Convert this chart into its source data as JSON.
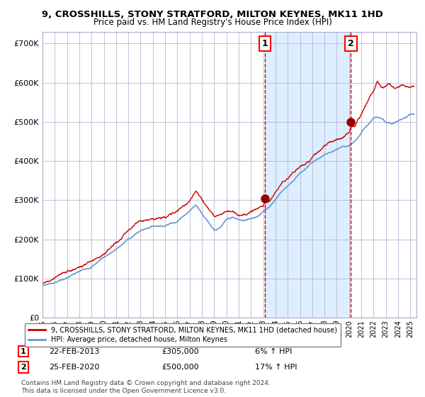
{
  "title1": "9, CROSSHILLS, STONY STRATFORD, MILTON KEYNES, MK11 1HD",
  "title2": "Price paid vs. HM Land Registry's House Price Index (HPI)",
  "xlim_start": 1995.0,
  "xlim_end": 2025.5,
  "ylim": [
    0,
    730000
  ],
  "yticks": [
    0,
    100000,
    200000,
    300000,
    400000,
    500000,
    600000,
    700000
  ],
  "ytick_labels": [
    "£0",
    "£100K",
    "£200K",
    "£300K",
    "£400K",
    "£500K",
    "£600K",
    "£700K"
  ],
  "xtick_years": [
    1995,
    1996,
    1997,
    1998,
    1999,
    2000,
    2001,
    2002,
    2003,
    2004,
    2005,
    2006,
    2007,
    2008,
    2009,
    2010,
    2011,
    2012,
    2013,
    2014,
    2015,
    2016,
    2017,
    2018,
    2019,
    2020,
    2021,
    2022,
    2023,
    2024,
    2025
  ],
  "sale1_x": 2013.13,
  "sale1_y": 305000,
  "sale2_x": 2020.15,
  "sale2_y": 500000,
  "shade_start": 2013.13,
  "shade_end": 2020.15,
  "red_line_color": "#cc0000",
  "blue_line_color": "#6699cc",
  "shade_color": "#ddeeff",
  "marker_color": "#990000",
  "vline_color": "#cc0000",
  "grid_color": "#aaaacc",
  "bg_color": "#ffffff",
  "legend_label_red": "9, CROSSHILLS, STONY STRATFORD, MILTON KEYNES, MK11 1HD (detached house)",
  "legend_label_blue": "HPI: Average price, detached house, Milton Keynes",
  "annot1_date": "22-FEB-2013",
  "annot1_price": "£305,000",
  "annot1_hpi": "6% ↑ HPI",
  "annot2_date": "25-FEB-2020",
  "annot2_price": "£500,000",
  "annot2_hpi": "17% ↑ HPI",
  "footer": "Contains HM Land Registry data © Crown copyright and database right 2024.\nThis data is licensed under the Open Government Licence v3.0."
}
